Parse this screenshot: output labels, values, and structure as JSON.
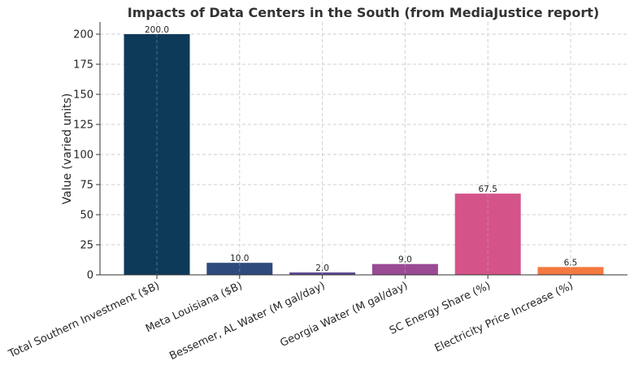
{
  "chart_data": {
    "type": "bar",
    "title": "Impacts of Data Centers in the South (from MediaJustice report)",
    "ylabel": "Value (varied units)",
    "xlabel": "",
    "ylim": [
      0,
      210
    ],
    "yticks": [
      "0",
      "25",
      "50",
      "75",
      "100",
      "125",
      "150",
      "175",
      "200"
    ],
    "grid": true,
    "categories": [
      "Total Southern Investment ($B)",
      "Meta Louisiana ($B)",
      "Bessemer, AL Water (M gal/day)",
      "Georgia Water (M gal/day)",
      "SC Energy Share (%)",
      "Electricity Price Increase (%)"
    ],
    "values": [
      200.0,
      10.0,
      2.0,
      9.0,
      67.5,
      6.5
    ],
    "value_labels": [
      "200.0",
      "10.0",
      "2.0",
      "9.0",
      "67.5",
      "6.5"
    ],
    "colors": [
      "#0e3a5a",
      "#2e4a7d",
      "#5e4a94",
      "#9a4a93",
      "#d4548a",
      "#f4783f"
    ]
  }
}
